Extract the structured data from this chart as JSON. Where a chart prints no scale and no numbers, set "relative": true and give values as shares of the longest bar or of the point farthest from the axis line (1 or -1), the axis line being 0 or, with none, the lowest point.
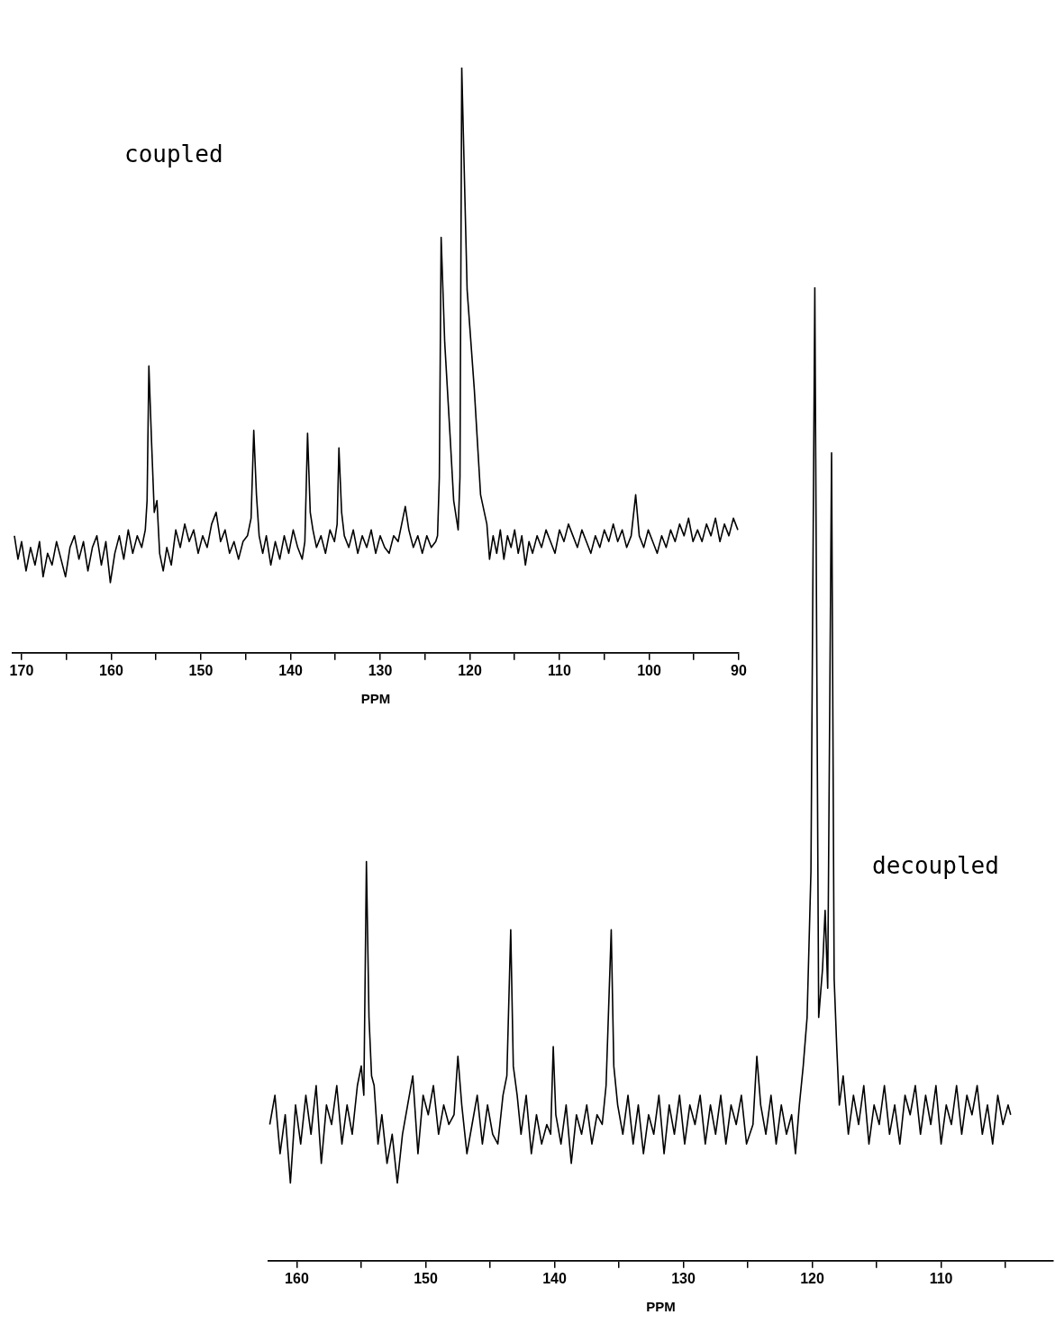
{
  "chart_data": [
    {
      "type": "line",
      "xlabel": "PPM",
      "relative": true,
      "marker": "none",
      "grid": false,
      "xlim": [
        171,
        90
      ],
      "xticks": [
        170,
        {
          "value": 165,
          "label": null
        },
        160,
        {
          "value": 155,
          "label": null
        },
        150,
        {
          "value": 145,
          "label": null
        },
        140,
        {
          "value": 135,
          "label": null
        },
        130,
        {
          "value": 125,
          "label": null
        },
        120,
        {
          "value": 115,
          "label": null
        },
        110,
        {
          "value": 105,
          "label": null
        },
        100,
        {
          "value": 95,
          "label": null
        },
        90
      ],
      "series": [
        {
          "name": "coupled",
          "color": "#000000",
          "x": [
            170.8,
            170.4,
            170.0,
            169.5,
            169.0,
            168.5,
            168.0,
            167.6,
            167.1,
            166.6,
            166.1,
            165.6,
            165.1,
            164.6,
            164.1,
            163.6,
            163.1,
            162.6,
            162.1,
            161.6,
            161.1,
            160.6,
            160.1,
            159.6,
            159.1,
            158.6,
            158.1,
            157.6,
            157.1,
            156.6,
            156.2,
            156.0,
            155.8,
            155.5,
            155.2,
            154.9,
            154.6,
            154.2,
            153.8,
            153.3,
            152.8,
            152.3,
            151.8,
            151.3,
            150.8,
            150.3,
            149.8,
            149.3,
            148.8,
            148.3,
            147.8,
            147.3,
            146.8,
            146.3,
            145.8,
            145.3,
            144.8,
            144.4,
            144.1,
            143.8,
            143.5,
            143.1,
            142.7,
            142.2,
            141.7,
            141.2,
            140.7,
            140.2,
            139.7,
            139.2,
            138.7,
            138.4,
            138.1,
            137.8,
            137.5,
            137.1,
            136.6,
            136.1,
            135.6,
            135.1,
            134.8,
            134.6,
            134.3,
            134.0,
            133.5,
            133.0,
            132.5,
            132.0,
            131.5,
            131.0,
            130.5,
            130.0,
            129.5,
            129.0,
            128.5,
            128.0,
            127.6,
            127.2,
            126.8,
            126.3,
            125.8,
            125.3,
            124.8,
            124.3,
            123.8,
            123.6,
            123.4,
            123.2,
            122.8,
            122.2,
            121.8,
            121.3,
            121.1,
            120.9,
            120.3,
            119.5,
            118.8,
            118.1,
            117.8,
            117.4,
            117.0,
            116.6,
            116.2,
            115.8,
            115.4,
            115.0,
            114.6,
            114.2,
            113.8,
            113.4,
            113.0,
            112.5,
            112.0,
            111.5,
            111.0,
            110.5,
            110.0,
            109.5,
            109.0,
            108.5,
            108.0,
            107.5,
            107.0,
            106.5,
            106.0,
            105.5,
            105.0,
            104.5,
            104.0,
            103.5,
            103.0,
            102.5,
            102.0,
            101.5,
            101.1,
            100.6,
            100.1,
            99.6,
            99.1,
            98.6,
            98.1,
            97.6,
            97.1,
            96.6,
            96.1,
            95.6,
            95.1,
            94.6,
            94.1,
            93.6,
            93.1,
            92.6,
            92.1,
            91.6,
            91.1,
            90.6,
            90.1
          ],
          "values": [
            0.2,
            0.16,
            0.19,
            0.14,
            0.18,
            0.15,
            0.19,
            0.13,
            0.17,
            0.15,
            0.19,
            0.16,
            0.13,
            0.18,
            0.2,
            0.16,
            0.19,
            0.14,
            0.18,
            0.2,
            0.15,
            0.19,
            0.12,
            0.17,
            0.2,
            0.16,
            0.21,
            0.17,
            0.2,
            0.18,
            0.21,
            0.26,
            0.49,
            0.36,
            0.24,
            0.26,
            0.17,
            0.14,
            0.18,
            0.15,
            0.21,
            0.18,
            0.22,
            0.19,
            0.21,
            0.17,
            0.2,
            0.18,
            0.22,
            0.24,
            0.19,
            0.21,
            0.17,
            0.19,
            0.16,
            0.19,
            0.2,
            0.23,
            0.38,
            0.27,
            0.2,
            0.17,
            0.2,
            0.15,
            0.19,
            0.16,
            0.2,
            0.17,
            0.21,
            0.18,
            0.16,
            0.19,
            0.375,
            0.24,
            0.21,
            0.18,
            0.2,
            0.17,
            0.21,
            0.19,
            0.22,
            0.35,
            0.24,
            0.2,
            0.18,
            0.21,
            0.17,
            0.2,
            0.18,
            0.21,
            0.17,
            0.2,
            0.18,
            0.17,
            0.2,
            0.19,
            0.22,
            0.25,
            0.21,
            0.18,
            0.2,
            0.17,
            0.2,
            0.18,
            0.19,
            0.2,
            0.3,
            0.71,
            0.53,
            0.37,
            0.26,
            0.21,
            0.3,
            1,
            0.62,
            0.45,
            0.27,
            0.22,
            0.16,
            0.2,
            0.17,
            0.21,
            0.16,
            0.2,
            0.18,
            0.21,
            0.17,
            0.2,
            0.15,
            0.19,
            0.17,
            0.2,
            0.18,
            0.21,
            0.19,
            0.17,
            0.21,
            0.19,
            0.22,
            0.2,
            0.18,
            0.21,
            0.19,
            0.17,
            0.2,
            0.18,
            0.21,
            0.19,
            0.22,
            0.19,
            0.21,
            0.18,
            0.2,
            0.27,
            0.2,
            0.18,
            0.21,
            0.19,
            0.17,
            0.2,
            0.18,
            0.21,
            0.19,
            0.22,
            0.2,
            0.23,
            0.19,
            0.21,
            0.19,
            0.22,
            0.2,
            0.23,
            0.19,
            0.22,
            0.2,
            0.23,
            0.21
          ]
        }
      ]
    },
    {
      "type": "line",
      "xlabel": "PPM",
      "relative": true,
      "marker": "none",
      "grid": false,
      "xlim": [
        162.2,
        101.3
      ],
      "xticks": [
        160,
        {
          "value": 155,
          "label": null
        },
        150,
        {
          "value": 145,
          "label": null
        },
        140,
        {
          "value": 135,
          "label": null
        },
        130,
        {
          "value": 125,
          "label": null
        },
        120,
        {
          "value": 115,
          "label": null
        },
        110,
        {
          "value": 105,
          "label": null
        }
      ],
      "series": [
        {
          "name": "decoupled",
          "color": "#000000",
          "x": [
            162.1,
            161.7,
            161.3,
            160.9,
            160.5,
            160.1,
            159.7,
            159.3,
            158.9,
            158.5,
            158.1,
            157.7,
            157.3,
            156.9,
            156.5,
            156.1,
            155.7,
            155.3,
            155.0,
            154.8,
            154.6,
            154.4,
            154.2,
            154.0,
            153.7,
            153.4,
            153.0,
            152.6,
            152.2,
            151.8,
            151.4,
            151.0,
            150.6,
            150.2,
            149.8,
            149.4,
            149.0,
            148.6,
            148.2,
            147.8,
            147.5,
            147.2,
            146.8,
            146.4,
            146.0,
            145.6,
            145.2,
            144.8,
            144.4,
            144.0,
            143.7,
            143.4,
            143.2,
            142.9,
            142.6,
            142.2,
            141.8,
            141.4,
            141.0,
            140.6,
            140.3,
            140.1,
            139.9,
            139.5,
            139.1,
            138.7,
            138.3,
            137.9,
            137.5,
            137.1,
            136.7,
            136.3,
            136.0,
            135.8,
            135.6,
            135.4,
            135.1,
            134.7,
            134.3,
            133.9,
            133.5,
            133.1,
            132.7,
            132.3,
            131.9,
            131.5,
            131.1,
            130.7,
            130.3,
            129.9,
            129.5,
            129.1,
            128.7,
            128.3,
            127.9,
            127.5,
            127.1,
            126.7,
            126.3,
            125.9,
            125.5,
            125.1,
            124.6,
            124.3,
            124.0,
            123.6,
            123.2,
            122.8,
            122.4,
            122.0,
            121.6,
            121.3,
            121.0,
            120.7,
            120.4,
            120.1,
            119.8,
            119.5,
            119.2,
            119.0,
            118.8,
            118.5,
            118.3,
            118.1,
            117.9,
            117.6,
            117.2,
            116.8,
            116.4,
            116.0,
            115.6,
            115.2,
            114.8,
            114.4,
            114.0,
            113.6,
            113.2,
            112.8,
            112.4,
            112.0,
            111.6,
            111.2,
            110.8,
            110.4,
            110.0,
            109.6,
            109.2,
            108.8,
            108.4,
            108.0,
            107.6,
            107.2,
            106.8,
            106.4,
            106.0,
            105.6,
            105.2,
            104.8,
            104.6
          ],
          "values": [
            0.14,
            0.17,
            0.11,
            0.15,
            0.08,
            0.16,
            0.12,
            0.17,
            0.13,
            0.18,
            0.1,
            0.16,
            0.14,
            0.18,
            0.12,
            0.16,
            0.13,
            0.18,
            0.2,
            0.17,
            0.41,
            0.25,
            0.19,
            0.18,
            0.12,
            0.15,
            0.1,
            0.13,
            0.08,
            0.13,
            0.16,
            0.19,
            0.11,
            0.17,
            0.15,
            0.18,
            0.13,
            0.16,
            0.14,
            0.15,
            0.21,
            0.16,
            0.11,
            0.14,
            0.17,
            0.12,
            0.16,
            0.13,
            0.12,
            0.17,
            0.19,
            0.34,
            0.2,
            0.17,
            0.13,
            0.17,
            0.11,
            0.15,
            0.12,
            0.14,
            0.13,
            0.22,
            0.15,
            0.12,
            0.16,
            0.1,
            0.15,
            0.13,
            0.16,
            0.12,
            0.15,
            0.14,
            0.18,
            0.26,
            0.34,
            0.2,
            0.16,
            0.13,
            0.17,
            0.12,
            0.16,
            0.11,
            0.15,
            0.13,
            0.17,
            0.11,
            0.16,
            0.13,
            0.17,
            0.12,
            0.16,
            0.14,
            0.17,
            0.12,
            0.16,
            0.13,
            0.17,
            0.12,
            0.16,
            0.14,
            0.17,
            0.12,
            0.14,
            0.21,
            0.16,
            0.13,
            0.17,
            0.12,
            0.16,
            0.13,
            0.15,
            0.11,
            0.16,
            0.2,
            0.25,
            0.4,
            1,
            0.25,
            0.3,
            0.36,
            0.28,
            0.83,
            0.29,
            0.22,
            0.16,
            0.19,
            0.13,
            0.17,
            0.14,
            0.18,
            0.12,
            0.16,
            0.14,
            0.18,
            0.13,
            0.16,
            0.12,
            0.17,
            0.15,
            0.18,
            0.13,
            0.17,
            0.14,
            0.18,
            0.12,
            0.16,
            0.14,
            0.18,
            0.13,
            0.17,
            0.15,
            0.18,
            0.13,
            0.16,
            0.12,
            0.17,
            0.14,
            0.16,
            0.15
          ]
        }
      ]
    }
  ]
}
